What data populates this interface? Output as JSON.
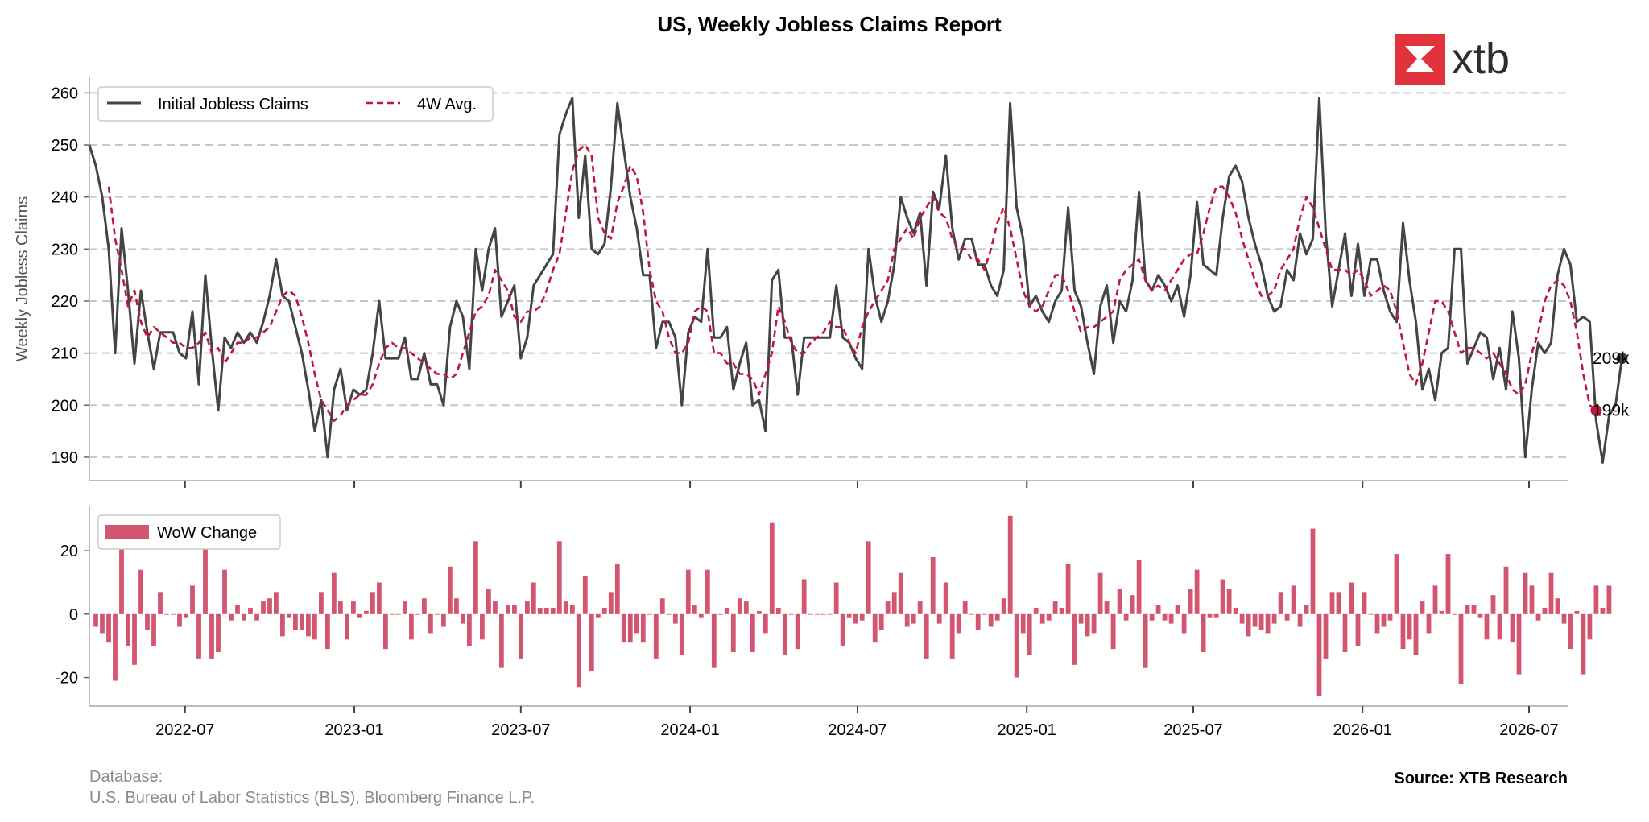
{
  "title": "US, Weekly Jobless Claims Report",
  "brand": {
    "name": "xtb",
    "logo_color": "#e2323b"
  },
  "footer": {
    "database_label": "Database:",
    "database_sources": "U.S. Bureau of Labor Statistics (BLS), Bloomberg Finance L.P.",
    "source": "Source: XTB Research"
  },
  "colors": {
    "claims": "#444444",
    "avg": "#c0163c",
    "wow": "#d2566f",
    "grid": "#c8c8c8",
    "axis": "#bdbdbd"
  },
  "chart_data": [
    {
      "type": "line",
      "ylabel": "Weekly Jobless Claims",
      "ylim": [
        185.5,
        263
      ],
      "yticks": [
        190,
        200,
        210,
        220,
        230,
        240,
        250,
        260
      ],
      "xlim": [
        "2022-03-19",
        "2026-08-12"
      ],
      "xticks": [
        "2022-07",
        "2023-01",
        "2023-07",
        "2024-01",
        "2024-07",
        "2025-01",
        "2025-07",
        "2026-01",
        "2026-07"
      ],
      "grid": "horizontal dashed",
      "legend": "top-left",
      "end_labels": [
        "209k",
        "199k"
      ],
      "series": [
        {
          "name": "Initial Jobless Claims",
          "style": "solid",
          "start": "2022-03-19",
          "step_days": 7,
          "values": [
            250,
            246,
            240,
            230,
            210,
            234,
            222,
            208,
            222,
            214,
            207,
            214,
            214,
            214,
            210,
            209,
            218,
            204,
            225,
            211,
            199,
            213,
            211,
            214,
            212,
            214,
            212,
            216,
            221,
            228,
            221,
            220,
            215,
            210,
            203,
            195,
            201,
            190,
            203,
            207,
            199,
            203,
            202,
            203,
            210,
            220,
            209,
            209,
            209,
            213,
            205,
            205,
            210,
            204,
            204,
            200,
            215,
            220,
            217,
            207,
            230,
            222,
            230,
            234,
            217,
            220,
            223,
            209,
            213,
            223,
            225,
            227,
            229,
            252,
            256,
            259,
            236,
            248,
            230,
            229,
            231,
            242,
            258,
            249,
            240,
            234,
            225,
            225,
            211,
            216,
            216,
            213,
            200,
            214,
            217,
            216,
            230,
            213,
            213,
            215,
            203,
            208,
            212,
            200,
            201,
            195,
            224,
            226,
            213,
            213,
            202,
            213,
            213,
            213,
            213,
            213,
            223,
            213,
            212,
            209,
            207,
            230,
            221,
            216,
            220,
            227,
            240,
            236,
            233,
            237,
            223,
            241,
            238,
            248,
            234,
            228,
            232,
            232,
            227,
            227,
            223,
            221,
            226,
            258,
            238,
            232,
            219,
            221,
            218,
            216,
            220,
            222,
            238,
            222,
            219,
            212,
            206,
            219,
            223,
            212,
            220,
            218,
            224,
            241,
            224,
            222,
            225,
            223,
            220,
            223,
            217,
            225,
            239,
            227,
            226,
            225,
            236,
            244,
            246,
            243,
            236,
            231,
            227,
            221,
            218,
            219,
            226,
            224,
            233,
            229,
            232,
            259,
            233,
            219,
            226,
            233,
            221,
            231,
            221,
            228,
            228,
            222,
            218,
            216,
            235,
            224,
            216,
            203,
            207,
            201,
            210,
            211,
            230,
            230,
            208,
            211,
            214,
            213,
            205,
            211,
            203,
            218,
            209,
            190,
            203,
            212,
            210,
            212,
            225,
            230,
            227,
            216,
            217,
            216,
            197,
            189,
            198,
            200,
            209
          ]
        },
        {
          "name": "4W Avg.",
          "style": "dashed",
          "start": "2022-04-09",
          "step_days": 7,
          "values": [
            242,
            232,
            226,
            219,
            222,
            216,
            213,
            215,
            214,
            213,
            212,
            212,
            211,
            211,
            212,
            214,
            210,
            211,
            208,
            210,
            212,
            212,
            213,
            213,
            214,
            215,
            218,
            221,
            222,
            221,
            217,
            212,
            206,
            201,
            199,
            197,
            198,
            200,
            201,
            202,
            202,
            204,
            208,
            211,
            212,
            211,
            211,
            210,
            209,
            208,
            207,
            206,
            206,
            205,
            206,
            210,
            214,
            218,
            219,
            221,
            226,
            224,
            222,
            217,
            216,
            218,
            218,
            219,
            222,
            226,
            229,
            237,
            245,
            249,
            250,
            248,
            236,
            233,
            232,
            239,
            242,
            246,
            244,
            237,
            226,
            220,
            218,
            213,
            210,
            210,
            212,
            218,
            219,
            218,
            210,
            210,
            208,
            208,
            206,
            206,
            205,
            202,
            206,
            210,
            219,
            216,
            212,
            210,
            210,
            212,
            213,
            214,
            216,
            215,
            215,
            212,
            210,
            215,
            218,
            220,
            222,
            224,
            230,
            232,
            234,
            232,
            236,
            238,
            240,
            237,
            236,
            232,
            230,
            230,
            228,
            228,
            226,
            230,
            235,
            238,
            234,
            228,
            222,
            219,
            218,
            219,
            222,
            225,
            225,
            222,
            218,
            214,
            215,
            215,
            216,
            217,
            218,
            224,
            226,
            227,
            228,
            224,
            222,
            223,
            222,
            224,
            226,
            228,
            229,
            229,
            233,
            238,
            242,
            242,
            240,
            237,
            232,
            228,
            224,
            221,
            221,
            222,
            226,
            228,
            230,
            236,
            240,
            238,
            234,
            230,
            226,
            226,
            226,
            225,
            226,
            224,
            221,
            222,
            223,
            222,
            218,
            212,
            206,
            204,
            208,
            214,
            220,
            220,
            218,
            214,
            210,
            211,
            211,
            210,
            209,
            210,
            208,
            206,
            203,
            202,
            204,
            210,
            214,
            220,
            223,
            224,
            223,
            220,
            214,
            206,
            200,
            199
          ]
        }
      ]
    },
    {
      "type": "bar",
      "legend": "top-left",
      "ylim": [
        -29,
        34
      ],
      "yticks": [
        -20,
        0,
        20
      ],
      "series": [
        {
          "name": "WoW Change",
          "start": "2022-03-26",
          "step_days": 7,
          "values": [
            -4,
            -6,
            -9,
            -21,
            24,
            -10,
            -16,
            14,
            -5,
            -10,
            7,
            0,
            0,
            -4,
            -1,
            9,
            -14,
            21,
            -14,
            -12,
            14,
            -2,
            3,
            -2,
            2,
            -2,
            4,
            5,
            7,
            -7,
            -1,
            -5,
            -5,
            -7,
            -8,
            7,
            -11,
            13,
            4,
            -8,
            4,
            -1,
            1,
            7,
            10,
            -11,
            0,
            0,
            4,
            -8,
            0,
            5,
            -6,
            0,
            -4,
            15,
            5,
            -3,
            -10,
            23,
            -8,
            8,
            4,
            -17,
            3,
            3,
            -14,
            4,
            10,
            2,
            2,
            2,
            23,
            4,
            3,
            -23,
            12,
            -18,
            -1,
            2,
            7,
            16,
            -9,
            -9,
            -6,
            -9,
            0,
            -14,
            5,
            0,
            -3,
            -13,
            14,
            3,
            -1,
            14,
            -17,
            0,
            2,
            -12,
            5,
            4,
            -12,
            1,
            -6,
            29,
            2,
            -13,
            0,
            -11,
            11,
            0,
            0,
            0,
            0,
            10,
            -10,
            -1,
            -3,
            -2,
            23,
            -9,
            -5,
            4,
            7,
            13,
            -4,
            -3,
            4,
            -14,
            18,
            -3,
            10,
            -14,
            -6,
            4,
            0,
            -5,
            0,
            -4,
            -2,
            5,
            31,
            -20,
            -6,
            -13,
            2,
            -3,
            -2,
            4,
            2,
            16,
            -16,
            -3,
            -7,
            -6,
            13,
            4,
            -11,
            8,
            -2,
            6,
            17,
            -17,
            -2,
            3,
            -2,
            -3,
            3,
            -6,
            8,
            14,
            -12,
            -1,
            -1,
            11,
            8,
            2,
            -3,
            -7,
            -4,
            -5,
            -6,
            -3,
            7,
            -2,
            9,
            -4,
            3,
            27,
            -26,
            -14,
            7,
            7,
            -12,
            10,
            -10,
            7,
            0,
            -6,
            -4,
            -2,
            19,
            -11,
            -8,
            -13,
            4,
            -6,
            9,
            1,
            19,
            0,
            -22,
            3,
            3,
            -1,
            -8,
            6,
            -8,
            15,
            -9,
            -19,
            13,
            9,
            -2,
            2,
            13,
            5,
            -3,
            -11,
            1,
            -19,
            -8,
            9,
            2,
            9
          ]
        }
      ]
    }
  ]
}
